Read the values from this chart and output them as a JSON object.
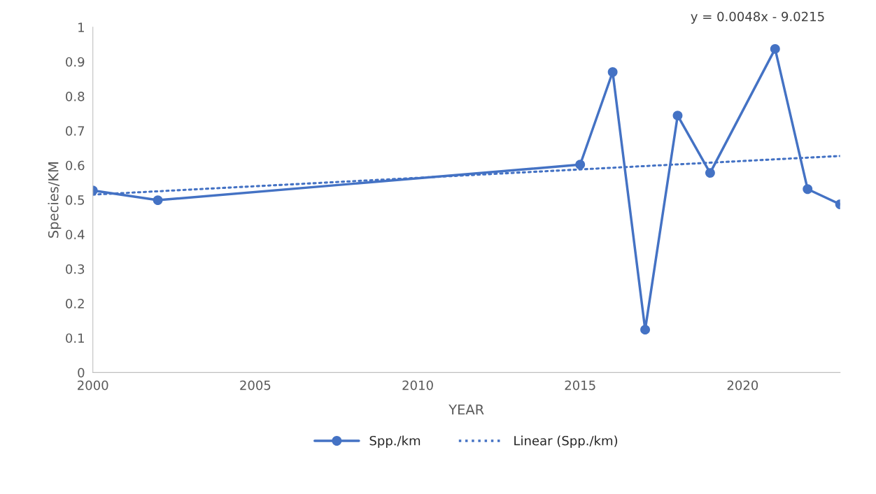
{
  "chart_data": {
    "type": "line",
    "xlabel": "YEAR",
    "ylabel": "Species/KM",
    "series": [
      {
        "name": "Spp./km",
        "color": "#4472c4",
        "marker": "circle",
        "line_style": "solid",
        "x": [
          2000,
          2002,
          2015,
          2016,
          2017,
          2018,
          2019,
          2021,
          2022,
          2023
        ],
        "values": [
          0.527,
          0.499,
          0.602,
          0.87,
          0.124,
          0.744,
          0.578,
          0.937,
          0.531,
          0.487
        ]
      },
      {
        "name": "Linear (Spp./km)",
        "color": "#4472c4",
        "marker": "none",
        "line_style": "dotted",
        "x": [
          2000,
          2023
        ],
        "values": [
          0.515,
          0.627
        ]
      }
    ],
    "xlim": [
      2000,
      2023
    ],
    "xticks": [
      2000,
      2005,
      2010,
      2015,
      2020
    ],
    "ylim": [
      0,
      1
    ],
    "yticks": [
      0,
      0.1,
      0.2,
      0.3,
      0.4,
      0.5,
      0.6,
      0.7,
      0.8,
      0.9,
      1
    ],
    "annotations": [
      "y = 0.0048x - 9.0215"
    ],
    "grid": false,
    "legend": "bottom"
  }
}
